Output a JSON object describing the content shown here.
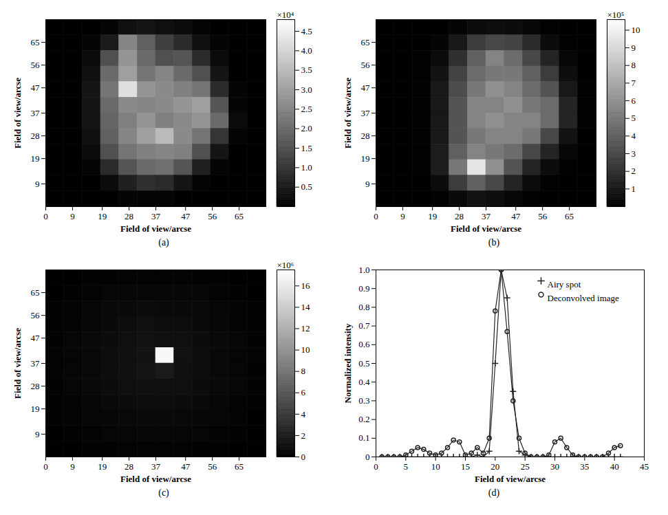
{
  "chart_data": [
    {
      "type": "heatmap",
      "caption": "(a)",
      "x_label": "Field of view/arcse",
      "y_label": "Field of view/arcse",
      "xlim": [
        0,
        74
      ],
      "ylim": [
        0,
        74
      ],
      "xticks": [
        0,
        9,
        19,
        28,
        37,
        47,
        56,
        65
      ],
      "yticks": [
        9,
        19,
        28,
        37,
        47,
        56,
        65
      ],
      "color": [
        "#000000",
        "#ffffff"
      ],
      "cells": [
        [
          0,
          0,
          0,
          0.1,
          0.3,
          0.4,
          0.3,
          0.2,
          0.1,
          0,
          0,
          0
        ],
        [
          0,
          0,
          0.1,
          0.5,
          2.5,
          1.8,
          1.2,
          0.8,
          0.3,
          0.1,
          0,
          0
        ],
        [
          0,
          0,
          0.2,
          1.5,
          2.8,
          2.0,
          1.5,
          1.6,
          0.8,
          0.2,
          0,
          0
        ],
        [
          0,
          0,
          0.3,
          2.0,
          3.0,
          2.2,
          2.5,
          2.0,
          1.5,
          0.4,
          0,
          0
        ],
        [
          0,
          0,
          0.4,
          2.2,
          4.2,
          2.8,
          2.6,
          2.4,
          2.2,
          0.8,
          0.1,
          0
        ],
        [
          0,
          0,
          0.4,
          2.0,
          2.6,
          2.5,
          2.6,
          2.8,
          3.0,
          1.6,
          0.1,
          0
        ],
        [
          0,
          0,
          0.4,
          1.9,
          2.4,
          2.8,
          2.4,
          2.6,
          2.8,
          2.0,
          0.2,
          0
        ],
        [
          0,
          0,
          0.3,
          1.8,
          2.5,
          3.0,
          3.5,
          2.6,
          2.2,
          1.0,
          0.1,
          0
        ],
        [
          0,
          0,
          0.2,
          1.5,
          2.2,
          2.4,
          2.5,
          2.4,
          1.5,
          0.4,
          0,
          0
        ],
        [
          0,
          0,
          0.1,
          0.8,
          1.6,
          2.0,
          2.1,
          1.6,
          0.6,
          0.1,
          0,
          0
        ],
        [
          0,
          0,
          0,
          0.2,
          0.6,
          0.9,
          0.8,
          0.4,
          0.1,
          0,
          0,
          0
        ],
        [
          0,
          0,
          0,
          0,
          0.1,
          0.1,
          0.1,
          0,
          0,
          0,
          0,
          0
        ]
      ],
      "colorbar": {
        "lim": [
          0,
          4.8
        ],
        "label": "×10⁴",
        "ticks": [
          0.5,
          {
            "value": 1,
            "label": "1.0"
          },
          1.5,
          {
            "value": 2,
            "label": "2.0"
          },
          2.5,
          {
            "value": 3,
            "label": "3.0"
          },
          3.5,
          {
            "value": 4,
            "label": "4.0"
          },
          4.5
        ]
      }
    },
    {
      "type": "heatmap",
      "caption": "(b)",
      "x_label": "Field of view/arcse",
      "y_label": "Field of view/arcse",
      "xlim": [
        0,
        74
      ],
      "ylim": [
        0,
        74
      ],
      "xticks": [
        0,
        9,
        19,
        28,
        37,
        47,
        56,
        65
      ],
      "yticks": [
        9,
        19,
        28,
        37,
        47,
        56,
        65
      ],
      "color": [
        "#000000",
        "#ffffff"
      ],
      "cells": [
        [
          0,
          0,
          0,
          0,
          0.2,
          0.5,
          0.6,
          0.5,
          0.3,
          0.1,
          0,
          0
        ],
        [
          0,
          0,
          0,
          0.2,
          1.0,
          2.5,
          3.0,
          2.8,
          1.8,
          0.5,
          0.1,
          0
        ],
        [
          0,
          0,
          0.1,
          0.5,
          2.0,
          4.0,
          5.5,
          4.5,
          3.0,
          1.5,
          0.3,
          0
        ],
        [
          0,
          0,
          0.1,
          0.8,
          2.8,
          4.5,
          5.0,
          5.0,
          4.0,
          2.5,
          0.6,
          0
        ],
        [
          0,
          0,
          0.1,
          1.0,
          3.2,
          5.0,
          6.0,
          5.5,
          4.5,
          3.5,
          1.0,
          0.1
        ],
        [
          0,
          0,
          0.1,
          1.0,
          3.5,
          5.5,
          5.5,
          6.0,
          5.0,
          4.5,
          1.5,
          0.1
        ],
        [
          0,
          0,
          0.1,
          1.0,
          3.5,
          5.5,
          6.0,
          5.5,
          5.5,
          4.5,
          1.5,
          0.1
        ],
        [
          0,
          0,
          0.1,
          1.0,
          3.5,
          5.0,
          5.5,
          5.5,
          5.0,
          3.0,
          0.8,
          0
        ],
        [
          0,
          0,
          0.1,
          1.2,
          4.0,
          5.5,
          5.0,
          4.5,
          3.0,
          1.5,
          0.3,
          0
        ],
        [
          0,
          0,
          0.1,
          1.2,
          5.0,
          9.5,
          6.0,
          3.5,
          1.5,
          0.5,
          0.1,
          0
        ],
        [
          0,
          0,
          0,
          0.5,
          2.5,
          4.0,
          3.0,
          1.5,
          0.5,
          0.1,
          0,
          0
        ],
        [
          0,
          0,
          0,
          0.1,
          0.4,
          0.8,
          0.6,
          0.3,
          0.1,
          0,
          0,
          0
        ]
      ],
      "colorbar": {
        "lim": [
          0,
          10.6
        ],
        "label": "×10⁵",
        "ticks": [
          1,
          2,
          3,
          4,
          5,
          6,
          7,
          8,
          9,
          10
        ]
      }
    },
    {
      "type": "heatmap",
      "caption": "(c)",
      "x_label": "Field of view/arcse",
      "y_label": "Field of view/arcse",
      "xlim": [
        0,
        74
      ],
      "ylim": [
        0,
        74
      ],
      "xticks": [
        0,
        9,
        19,
        28,
        37,
        47,
        56,
        65
      ],
      "yticks": [
        9,
        19,
        28,
        37,
        47,
        56,
        65
      ],
      "color": [
        "#000000",
        "#ffffff"
      ],
      "cells": [
        [
          0.1,
          0.1,
          0.2,
          0.2,
          0.3,
          0.3,
          0.3,
          0.3,
          0.2,
          0.2,
          0.1,
          0.1
        ],
        [
          0.1,
          0.2,
          0.3,
          0.4,
          0.5,
          0.5,
          0.5,
          0.5,
          0.4,
          0.3,
          0.2,
          0.1
        ],
        [
          0.2,
          0.3,
          0.4,
          0.6,
          0.7,
          0.8,
          0.7,
          0.7,
          0.6,
          0.4,
          0.3,
          0.2
        ],
        [
          0.2,
          0.3,
          0.5,
          0.7,
          0.9,
          1.0,
          0.9,
          0.9,
          0.7,
          0.5,
          0.3,
          0.2
        ],
        [
          0.2,
          0.4,
          0.6,
          0.8,
          1.0,
          1.2,
          1.1,
          1.0,
          0.8,
          0.6,
          0.4,
          0.2
        ],
        [
          0.3,
          0.4,
          0.6,
          0.9,
          1.1,
          1.3,
          17.0,
          1.2,
          0.9,
          0.6,
          0.4,
          0.3
        ],
        [
          0.3,
          0.4,
          0.6,
          0.9,
          1.1,
          1.4,
          1.8,
          1.1,
          0.9,
          0.6,
          0.4,
          0.2
        ],
        [
          0.2,
          0.4,
          0.6,
          0.8,
          1.0,
          1.1,
          1.0,
          1.0,
          0.8,
          0.6,
          0.4,
          0.2
        ],
        [
          0.2,
          0.3,
          0.5,
          0.7,
          0.8,
          0.9,
          0.9,
          0.8,
          0.7,
          0.5,
          0.3,
          0.2
        ],
        [
          0.2,
          0.3,
          0.4,
          0.5,
          0.6,
          0.7,
          0.7,
          0.6,
          0.5,
          0.4,
          0.3,
          0.1
        ],
        [
          0.1,
          0.2,
          0.3,
          0.4,
          0.4,
          0.5,
          0.5,
          0.4,
          0.4,
          0.3,
          0.2,
          0.1
        ],
        [
          0.1,
          0.1,
          0.2,
          0.2,
          0.3,
          0.3,
          0.3,
          0.3,
          0.2,
          0.2,
          0.1,
          0.1
        ]
      ],
      "colorbar": {
        "lim": [
          0,
          17.5
        ],
        "label": "×10⁶",
        "ticks": [
          0,
          2,
          4,
          6,
          8,
          10,
          12,
          14,
          16
        ]
      }
    },
    {
      "type": "line",
      "caption": "(d)",
      "x_label": "Field of view/arcse",
      "y_label": "Normalized intensity",
      "xlim": [
        0,
        45
      ],
      "xticks": [
        0,
        5,
        10,
        15,
        20,
        25,
        30,
        35,
        40,
        45
      ],
      "ylim": [
        0,
        1
      ],
      "yticks": [
        0,
        0.1,
        0.2,
        0.3,
        0.4,
        0.5,
        0.6,
        0.7,
        0.8,
        0.9,
        {
          "value": 1,
          "label": "1.0"
        }
      ],
      "grid": false,
      "legend": "top-right",
      "x": [
        1,
        2,
        3,
        4,
        5,
        6,
        7,
        8,
        9,
        10,
        11,
        12,
        13,
        14,
        15,
        16,
        17,
        18,
        19,
        20,
        21,
        22,
        23,
        24,
        25,
        26,
        27,
        28,
        29,
        30,
        31,
        32,
        33,
        34,
        35,
        36,
        37,
        38,
        39,
        40,
        41
      ],
      "series": [
        {
          "name": "Airy spot",
          "color": "#222222",
          "marker": "plus",
          "line_style": "solid",
          "values": [
            0,
            0,
            0,
            0,
            0,
            0,
            0,
            0,
            0,
            0,
            0,
            0,
            0,
            0,
            0,
            0,
            0.01,
            0,
            0.03,
            0.5,
            1.0,
            0.85,
            0.35,
            0.03,
            0.01,
            0,
            0,
            0,
            0,
            0,
            0,
            0,
            0,
            0,
            0,
            0,
            0,
            0,
            0,
            0,
            0
          ]
        },
        {
          "name": "Deconvolved image",
          "color": "#222222",
          "marker": "circle",
          "line_style": "solid",
          "values": [
            0,
            0,
            0,
            0,
            0.01,
            0.03,
            0.05,
            0.04,
            0.02,
            0.01,
            0.02,
            0.05,
            0.09,
            0.08,
            0.01,
            0.02,
            0.05,
            0.02,
            0.1,
            0.78,
            1.0,
            0.67,
            0.3,
            0.1,
            0.02,
            0,
            0,
            0,
            0.01,
            0.08,
            0.1,
            0.05,
            0.01,
            0,
            0,
            0,
            0,
            0,
            0.02,
            0.05,
            0.06
          ]
        }
      ]
    }
  ]
}
